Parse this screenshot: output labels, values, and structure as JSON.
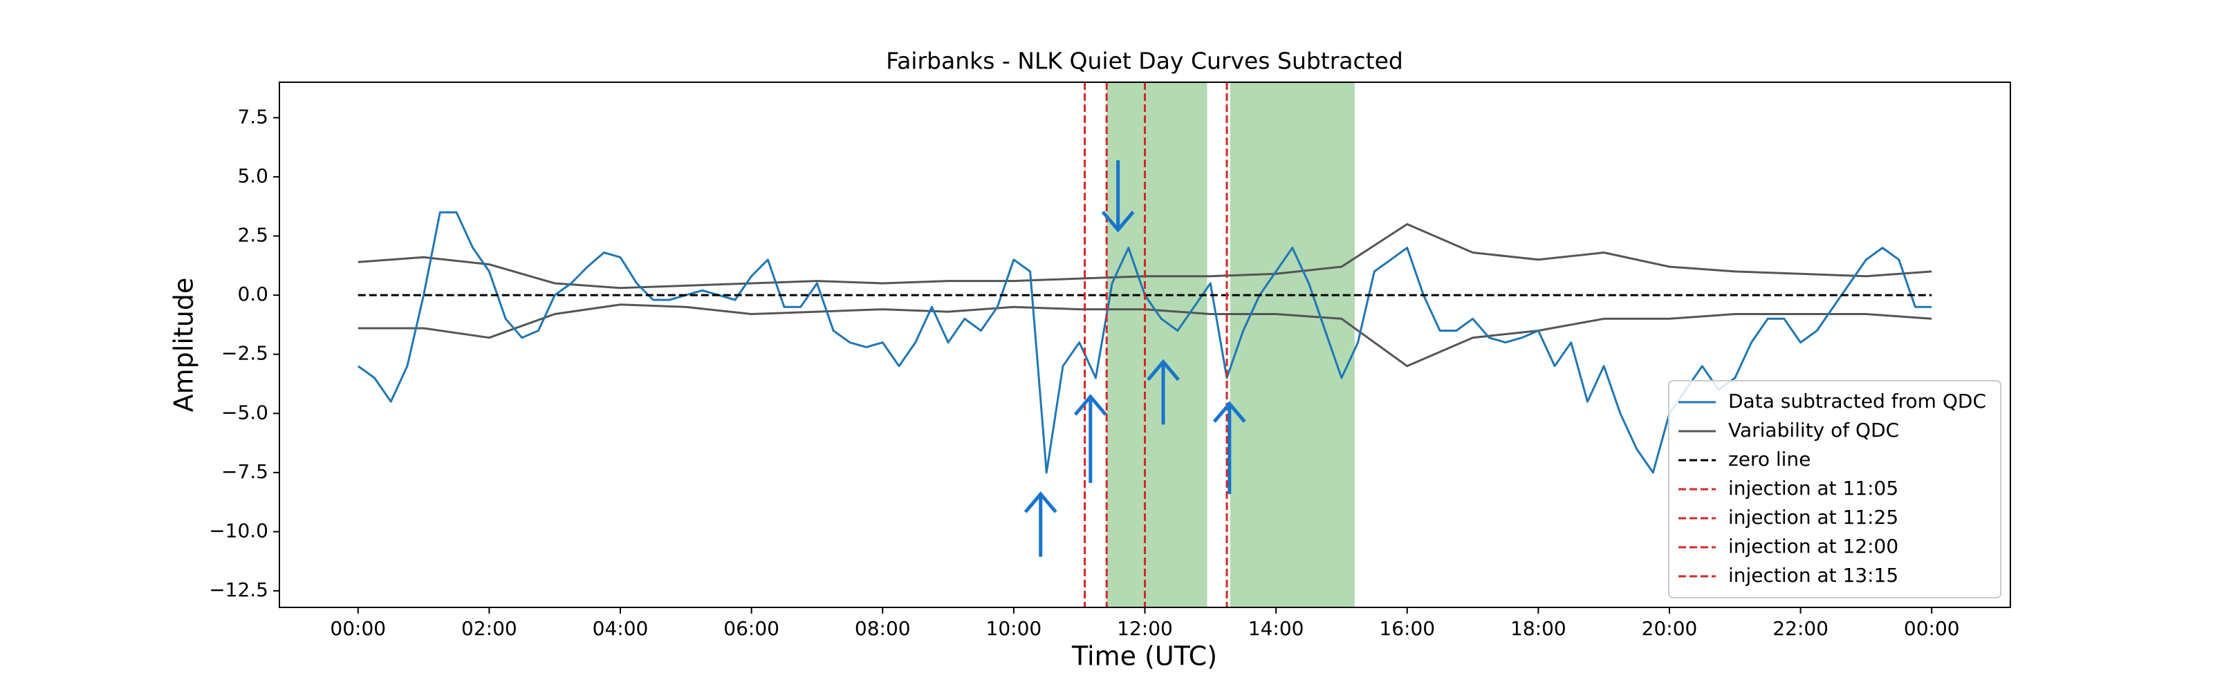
{
  "chart_data": {
    "type": "line",
    "title": "Fairbanks - NLK Quiet Day Curves Subtracted",
    "x_label": "Time (UTC)",
    "y_label": "Amplitude",
    "xlim": [
      -1.2,
      25.2
    ],
    "ylim": [
      -13.2,
      9.0
    ],
    "xticks": [
      {
        "value": 0,
        "label": "00:00"
      },
      {
        "value": 2,
        "label": "02:00"
      },
      {
        "value": 4,
        "label": "04:00"
      },
      {
        "value": 6,
        "label": "06:00"
      },
      {
        "value": 8,
        "label": "08:00"
      },
      {
        "value": 10,
        "label": "10:00"
      },
      {
        "value": 12,
        "label": "12:00"
      },
      {
        "value": 14,
        "label": "14:00"
      },
      {
        "value": 16,
        "label": "16:00"
      },
      {
        "value": 18,
        "label": "18:00"
      },
      {
        "value": 20,
        "label": "20:00"
      },
      {
        "value": 22,
        "label": "22:00"
      },
      {
        "value": 24,
        "label": "00:00"
      }
    ],
    "yticks": [
      {
        "value": 7.5,
        "label": "7.5"
      },
      {
        "value": 5,
        "label": "5.0"
      },
      {
        "value": 2.5,
        "label": "2.5"
      },
      {
        "value": 0,
        "label": "0.0"
      },
      {
        "value": -2.5,
        "label": "−2.5"
      },
      {
        "value": -5,
        "label": "−5.0"
      },
      {
        "value": -7.5,
        "label": "−7.5"
      },
      {
        "value": -10,
        "label": "−10.0"
      },
      {
        "value": -12.5,
        "label": "−12.5"
      }
    ],
    "legend": "lower right",
    "series": [
      {
        "name": "Data subtracted from QDC",
        "color": "#1f77b4",
        "x": [
          0,
          0.25,
          0.5,
          0.75,
          1,
          1.25,
          1.5,
          1.75,
          2,
          2.25,
          2.5,
          2.75,
          3,
          3.25,
          3.5,
          3.75,
          4,
          4.25,
          4.5,
          4.75,
          5,
          5.25,
          5.5,
          5.75,
          6,
          6.25,
          6.5,
          6.75,
          7,
          7.25,
          7.5,
          7.75,
          8,
          8.25,
          8.5,
          8.75,
          9,
          9.25,
          9.5,
          9.75,
          10,
          10.25,
          10.5,
          10.75,
          11,
          11.25,
          11.5,
          11.75,
          12,
          12.25,
          12.5,
          12.75,
          13,
          13.25,
          13.5,
          13.75,
          14,
          14.25,
          14.5,
          14.75,
          15,
          15.25,
          15.5,
          15.75,
          16,
          16.25,
          16.5,
          16.75,
          17,
          17.25,
          17.5,
          17.75,
          18,
          18.25,
          18.5,
          18.75,
          19,
          19.25,
          19.5,
          19.75,
          20,
          20.25,
          20.5,
          20.75,
          21,
          21.25,
          21.5,
          21.75,
          22,
          22.25,
          22.5,
          22.75,
          23,
          23.25,
          23.5,
          23.75,
          24
        ],
        "values": [
          -3,
          -3.5,
          -4.5,
          -3,
          0,
          3.5,
          3.5,
          2,
          1,
          -1,
          -1.8,
          -1.5,
          0,
          0.5,
          1.2,
          1.8,
          1.6,
          0.5,
          -0.2,
          -0.2,
          0,
          0.2,
          0,
          -0.2,
          0.8,
          1.5,
          -0.5,
          -0.5,
          0.5,
          -1.5,
          -2,
          -2.2,
          -2,
          -3,
          -2,
          -0.5,
          -2,
          -1,
          -1.5,
          -0.5,
          1.5,
          1,
          -7.5,
          -3,
          -2,
          -3.5,
          0.5,
          2,
          0,
          -1,
          -1.5,
          -0.5,
          0.5,
          -3.5,
          -1.5,
          0,
          1,
          2,
          0.5,
          -1.5,
          -3.5,
          -2,
          1,
          1.5,
          2,
          0,
          -1.5,
          -1.5,
          -1,
          -1.8,
          -2,
          -1.8,
          -1.5,
          -3,
          -2,
          -4.5,
          -3,
          -5,
          -6.5,
          -7.5,
          -5,
          -4,
          -3,
          -4,
          -3.5,
          -2,
          -1,
          -1,
          -2,
          -1.5,
          -0.5,
          0.5,
          1.5,
          2,
          1.5,
          -0.5,
          -0.5
        ]
      }
    ],
    "variability": {
      "name": "Variability of QDC",
      "color": "#555555",
      "x": [
        0,
        1,
        2,
        3,
        4,
        5,
        6,
        7,
        8,
        9,
        10,
        11,
        12,
        13,
        14,
        15,
        16,
        17,
        18,
        19,
        20,
        21,
        22,
        23,
        24
      ],
      "upper": [
        1.4,
        1.6,
        1.3,
        0.5,
        0.3,
        0.4,
        0.5,
        0.6,
        0.5,
        0.6,
        0.6,
        0.7,
        0.8,
        0.8,
        0.9,
        1.2,
        3.0,
        1.8,
        1.5,
        1.8,
        1.2,
        1.0,
        0.9,
        0.8,
        1.0
      ],
      "lower": [
        -1.4,
        -1.4,
        -1.8,
        -0.8,
        -0.4,
        -0.5,
        -0.8,
        -0.7,
        -0.6,
        -0.7,
        -0.5,
        -0.6,
        -0.6,
        -0.8,
        -0.8,
        -1.0,
        -3.0,
        -1.8,
        -1.5,
        -1.0,
        -1.0,
        -0.8,
        -0.8,
        -0.8,
        -1.0
      ]
    },
    "zero_line": {
      "name": "zero line",
      "color": "#000000",
      "value": 0
    },
    "injections": [
      {
        "name": "injection at 11:05",
        "x": 11.083
      },
      {
        "name": "injection at 11:25",
        "x": 11.417
      },
      {
        "name": "injection at 12:00",
        "x": 12.0
      },
      {
        "name": "injection at 13:15",
        "x": 13.25
      }
    ],
    "injection_color": "#d62728",
    "shaded": [
      [
        11.42,
        12.95
      ],
      [
        13.3,
        15.2
      ]
    ],
    "shade_color": "#b3dab3",
    "arrows": [
      {
        "x": 10.41,
        "from": -11.06,
        "to": -8.41
      },
      {
        "x": 11.17,
        "from": -7.94,
        "to": -4.29
      },
      {
        "x": 11.59,
        "from": 5.7,
        "to": 2.76
      },
      {
        "x": 12.28,
        "from": -5.47,
        "to": -2.82
      },
      {
        "x": 13.29,
        "from": -8.41,
        "to": -4.59
      }
    ],
    "arrow_color": "#1874cd"
  }
}
